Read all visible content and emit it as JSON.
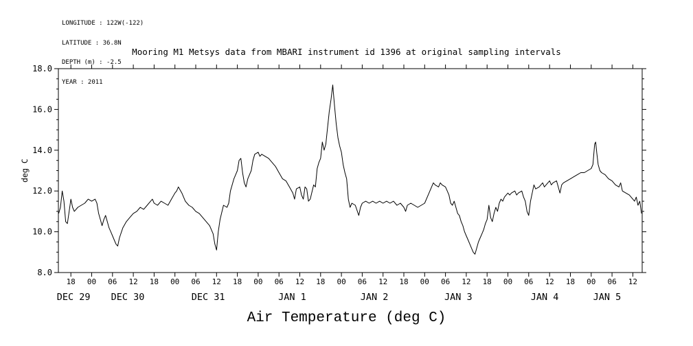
{
  "chart_data": {
    "type": "line",
    "title": "Mooring M1 Metsys data from MBARI instrument id 1396 at original sampling intervals",
    "xlabel": "Air Temperature (deg C)",
    "ylabel": "deg C",
    "annotations": [
      "LONGITUDE : 122W(-122)",
      "LATITUDE : 36.8N",
      "DEPTH (m) : -2.5",
      "YEAR : 2011"
    ],
    "grid": false,
    "legend": "none",
    "axis_color": "#000000",
    "line_color": "#000000",
    "ylim": [
      8.0,
      18.0
    ],
    "yticks": [
      8.0,
      10.0,
      12.0,
      14.0,
      16.0,
      18.0
    ],
    "ytick_labels": [
      "8.0",
      "10.0",
      "12.0",
      "14.0",
      "16.0",
      "18.0"
    ],
    "yminor_step": 0.5,
    "xlim_hours": [
      14.4,
      182.7
    ],
    "x_units": "hours since 1 Dec 29 00:00, year 2011",
    "xtick_hours": [
      18,
      24,
      30,
      36,
      42,
      48,
      54,
      60,
      66,
      72,
      78,
      84,
      90,
      96,
      102,
      108,
      114,
      120,
      126,
      132,
      138,
      144,
      150,
      156,
      162,
      168,
      174,
      180
    ],
    "xtick_labels": [
      "18",
      "00",
      "06",
      "12",
      "18",
      "00",
      "06",
      "12",
      "18",
      "00",
      "06",
      "12",
      "18",
      "00",
      "06",
      "12",
      "18",
      "00",
      "06",
      "12",
      "18",
      "00",
      "06",
      "12",
      "18",
      "00",
      "06",
      "12"
    ],
    "date_labels": [
      {
        "label": "DEC 29",
        "hour": 18.8
      },
      {
        "label": "DEC 30",
        "hour": 34.4
      },
      {
        "label": "DEC 31",
        "hour": 57.6
      },
      {
        "label": "JAN 1",
        "hour": 81.8
      },
      {
        "label": "JAN 2",
        "hour": 105.5
      },
      {
        "label": "JAN 3",
        "hour": 129.7
      },
      {
        "label": "JAN 4",
        "hour": 154.6
      },
      {
        "label": "JAN 5",
        "hour": 172.6
      }
    ],
    "series": [
      {
        "name": "Air Temperature",
        "units": "deg C",
        "points": [
          [
            14.5,
            10.9
          ],
          [
            15,
            11.2
          ],
          [
            15.5,
            12.0
          ],
          [
            16,
            11.5
          ],
          [
            16.5,
            10.5
          ],
          [
            17,
            10.4
          ],
          [
            17.5,
            11.0
          ],
          [
            18,
            11.6
          ],
          [
            18.5,
            11.2
          ],
          [
            19,
            11.0
          ],
          [
            20,
            11.2
          ],
          [
            21,
            11.3
          ],
          [
            22,
            11.4
          ],
          [
            23,
            11.6
          ],
          [
            24,
            11.5
          ],
          [
            25,
            11.6
          ],
          [
            25.5,
            11.4
          ],
          [
            26,
            10.9
          ],
          [
            26.5,
            10.6
          ],
          [
            27,
            10.3
          ],
          [
            27.5,
            10.6
          ],
          [
            28,
            10.8
          ],
          [
            28.5,
            10.5
          ],
          [
            29,
            10.2
          ],
          [
            29.5,
            10.0
          ],
          [
            30,
            9.8
          ],
          [
            30.5,
            9.6
          ],
          [
            31,
            9.4
          ],
          [
            31.5,
            9.3
          ],
          [
            32,
            9.7
          ],
          [
            33,
            10.2
          ],
          [
            34,
            10.5
          ],
          [
            35,
            10.7
          ],
          [
            36,
            10.9
          ],
          [
            37,
            11.0
          ],
          [
            38,
            11.2
          ],
          [
            39,
            11.1
          ],
          [
            40,
            11.3
          ],
          [
            41,
            11.5
          ],
          [
            41.5,
            11.6
          ],
          [
            42,
            11.4
          ],
          [
            43,
            11.3
          ],
          [
            44,
            11.5
          ],
          [
            45,
            11.4
          ],
          [
            46,
            11.3
          ],
          [
            47,
            11.6
          ],
          [
            48,
            11.9
          ],
          [
            48.5,
            12.0
          ],
          [
            49,
            12.2
          ],
          [
            50,
            11.9
          ],
          [
            51,
            11.5
          ],
          [
            52,
            11.3
          ],
          [
            53,
            11.2
          ],
          [
            54,
            11.0
          ],
          [
            55,
            10.9
          ],
          [
            56,
            10.7
          ],
          [
            57,
            10.5
          ],
          [
            58,
            10.3
          ],
          [
            59,
            9.9
          ],
          [
            59.5,
            9.4
          ],
          [
            60,
            9.1
          ],
          [
            60.5,
            10.0
          ],
          [
            61,
            10.6
          ],
          [
            62,
            11.3
          ],
          [
            63,
            11.2
          ],
          [
            63.5,
            11.4
          ],
          [
            64,
            12.0
          ],
          [
            65,
            12.6
          ],
          [
            66,
            13.0
          ],
          [
            66.5,
            13.5
          ],
          [
            67,
            13.6
          ],
          [
            67.5,
            12.9
          ],
          [
            68,
            12.4
          ],
          [
            68.5,
            12.2
          ],
          [
            69,
            12.6
          ],
          [
            70,
            13.0
          ],
          [
            70.5,
            13.5
          ],
          [
            71,
            13.8
          ],
          [
            72,
            13.9
          ],
          [
            72.5,
            13.7
          ],
          [
            73,
            13.8
          ],
          [
            74,
            13.7
          ],
          [
            75,
            13.6
          ],
          [
            76,
            13.4
          ],
          [
            77,
            13.2
          ],
          [
            78,
            12.9
          ],
          [
            79,
            12.6
          ],
          [
            80,
            12.5
          ],
          [
            81,
            12.2
          ],
          [
            82,
            11.9
          ],
          [
            82.5,
            11.6
          ],
          [
            83,
            12.1
          ],
          [
            84,
            12.2
          ],
          [
            84.5,
            11.8
          ],
          [
            85,
            11.6
          ],
          [
            85.5,
            12.2
          ],
          [
            86,
            12.1
          ],
          [
            86.5,
            11.5
          ],
          [
            87,
            11.6
          ],
          [
            88,
            12.3
          ],
          [
            88.5,
            12.2
          ],
          [
            89,
            13.1
          ],
          [
            89.5,
            13.4
          ],
          [
            90,
            13.6
          ],
          [
            90.5,
            14.4
          ],
          [
            91,
            14.0
          ],
          [
            91.5,
            14.3
          ],
          [
            92,
            15.1
          ],
          [
            92.5,
            15.9
          ],
          [
            93,
            16.5
          ],
          [
            93.5,
            17.2
          ],
          [
            94,
            16.2
          ],
          [
            94.5,
            15.3
          ],
          [
            95,
            14.6
          ],
          [
            95.5,
            14.2
          ],
          [
            96,
            13.9
          ],
          [
            96.5,
            13.3
          ],
          [
            97,
            12.9
          ],
          [
            97.5,
            12.6
          ],
          [
            98,
            11.6
          ],
          [
            98.5,
            11.2
          ],
          [
            99,
            11.4
          ],
          [
            100,
            11.3
          ],
          [
            101,
            10.8
          ],
          [
            101.5,
            11.2
          ],
          [
            102,
            11.4
          ],
          [
            103,
            11.5
          ],
          [
            104,
            11.4
          ],
          [
            105,
            11.5
          ],
          [
            106,
            11.4
          ],
          [
            107,
            11.5
          ],
          [
            108,
            11.4
          ],
          [
            109,
            11.5
          ],
          [
            110,
            11.4
          ],
          [
            111,
            11.5
          ],
          [
            112,
            11.3
          ],
          [
            113,
            11.4
          ],
          [
            114,
            11.2
          ],
          [
            114.5,
            11.0
          ],
          [
            115,
            11.3
          ],
          [
            116,
            11.4
          ],
          [
            117,
            11.3
          ],
          [
            118,
            11.2
          ],
          [
            119,
            11.3
          ],
          [
            120,
            11.4
          ],
          [
            121,
            11.8
          ],
          [
            122,
            12.2
          ],
          [
            122.5,
            12.4
          ],
          [
            123,
            12.3
          ],
          [
            124,
            12.2
          ],
          [
            124.5,
            12.4
          ],
          [
            125,
            12.3
          ],
          [
            126,
            12.2
          ],
          [
            126.5,
            12.0
          ],
          [
            127,
            11.8
          ],
          [
            127.5,
            11.4
          ],
          [
            128,
            11.3
          ],
          [
            128.5,
            11.5
          ],
          [
            129,
            11.2
          ],
          [
            129.5,
            10.9
          ],
          [
            130,
            10.8
          ],
          [
            130.5,
            10.5
          ],
          [
            131,
            10.3
          ],
          [
            131.5,
            10.0
          ],
          [
            132,
            9.8
          ],
          [
            132.5,
            9.6
          ],
          [
            133,
            9.4
          ],
          [
            133.5,
            9.2
          ],
          [
            134,
            9.0
          ],
          [
            134.5,
            8.9
          ],
          [
            135,
            9.2
          ],
          [
            135.5,
            9.5
          ],
          [
            136,
            9.7
          ],
          [
            136.5,
            9.9
          ],
          [
            137,
            10.1
          ],
          [
            137.5,
            10.4
          ],
          [
            138,
            10.6
          ],
          [
            138.5,
            11.3
          ],
          [
            139,
            10.7
          ],
          [
            139.5,
            10.5
          ],
          [
            140,
            10.9
          ],
          [
            140.5,
            11.2
          ],
          [
            141,
            11.0
          ],
          [
            141.5,
            11.4
          ],
          [
            142,
            11.6
          ],
          [
            142.5,
            11.5
          ],
          [
            143,
            11.7
          ],
          [
            143.5,
            11.8
          ],
          [
            144,
            11.9
          ],
          [
            144.5,
            11.8
          ],
          [
            145,
            11.9
          ],
          [
            146,
            12.0
          ],
          [
            146.5,
            11.8
          ],
          [
            147,
            11.9
          ],
          [
            148,
            12.0
          ],
          [
            148.5,
            11.7
          ],
          [
            149,
            11.5
          ],
          [
            149.5,
            11.0
          ],
          [
            150,
            10.8
          ],
          [
            150.5,
            11.5
          ],
          [
            151,
            11.9
          ],
          [
            151.5,
            12.3
          ],
          [
            152,
            12.1
          ],
          [
            153,
            12.2
          ],
          [
            154,
            12.4
          ],
          [
            154.5,
            12.2
          ],
          [
            155,
            12.3
          ],
          [
            156,
            12.5
          ],
          [
            156.5,
            12.3
          ],
          [
            157,
            12.4
          ],
          [
            158,
            12.5
          ],
          [
            158.5,
            12.2
          ],
          [
            159,
            11.9
          ],
          [
            159.5,
            12.3
          ],
          [
            160,
            12.4
          ],
          [
            161,
            12.5
          ],
          [
            162,
            12.6
          ],
          [
            163,
            12.7
          ],
          [
            164,
            12.8
          ],
          [
            165,
            12.9
          ],
          [
            166,
            12.9
          ],
          [
            167,
            13.0
          ],
          [
            168,
            13.1
          ],
          [
            168.5,
            13.3
          ],
          [
            169,
            14.3
          ],
          [
            169.3,
            14.4
          ],
          [
            169.6,
            13.9
          ],
          [
            170,
            13.3
          ],
          [
            170.5,
            13.0
          ],
          [
            171,
            12.9
          ],
          [
            172,
            12.8
          ],
          [
            173,
            12.6
          ],
          [
            174,
            12.5
          ],
          [
            175,
            12.3
          ],
          [
            176,
            12.2
          ],
          [
            176.5,
            12.4
          ],
          [
            177,
            12.0
          ],
          [
            178,
            11.9
          ],
          [
            179,
            11.8
          ],
          [
            180,
            11.6
          ],
          [
            180.5,
            11.5
          ],
          [
            181,
            11.7
          ],
          [
            181.5,
            11.3
          ],
          [
            182,
            11.5
          ],
          [
            182.5,
            10.9
          ]
        ]
      }
    ]
  }
}
